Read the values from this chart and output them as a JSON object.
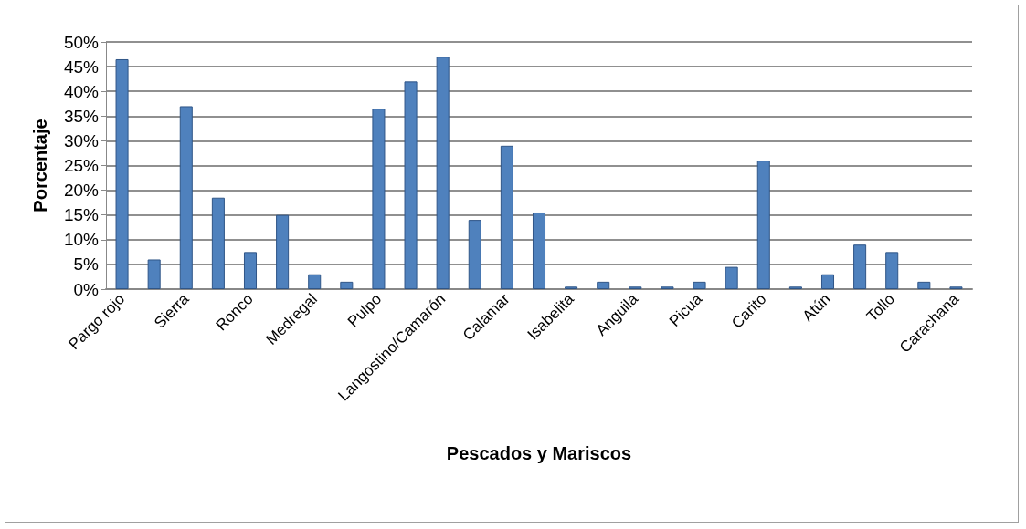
{
  "chart_data": {
    "type": "bar",
    "xlabel": "Pescados y Mariscos",
    "ylabel": "Porcentaje",
    "categories": [
      "Pargo rojo",
      null,
      "Sierra",
      null,
      "Ronco",
      null,
      "Medregal",
      null,
      "Pulpo",
      null,
      "Langostino/Camarón",
      null,
      "Calamar",
      null,
      "Isabelita",
      null,
      "Anguila",
      null,
      "Picua",
      null,
      "Carito",
      null,
      "Atún",
      null,
      "Tollo",
      null,
      "Carachana"
    ],
    "values": [
      46.5,
      6,
      37,
      18.5,
      7.5,
      15,
      3,
      1.5,
      36.5,
      42,
      47,
      14,
      29,
      15.5,
      0.5,
      1.5,
      0.5,
      0.5,
      1.5,
      4.5,
      26,
      0.5,
      3,
      9,
      7.5,
      1.5,
      0.5
    ],
    "color": "#4f81bd",
    "ylim": [
      0,
      50
    ],
    "yticks": [
      {
        "value": 0,
        "label": "0%"
      },
      {
        "value": 5,
        "label": "5%"
      },
      {
        "value": 10,
        "label": "10%"
      },
      {
        "value": 15,
        "label": "15%"
      },
      {
        "value": 20,
        "label": "20%"
      },
      {
        "value": 25,
        "label": "25%"
      },
      {
        "value": 30,
        "label": "30%"
      },
      {
        "value": 35,
        "label": "35%"
      },
      {
        "value": 40,
        "label": "40%"
      },
      {
        "value": 45,
        "label": "45%"
      },
      {
        "value": 50,
        "label": "50%"
      }
    ],
    "grid": "y"
  }
}
